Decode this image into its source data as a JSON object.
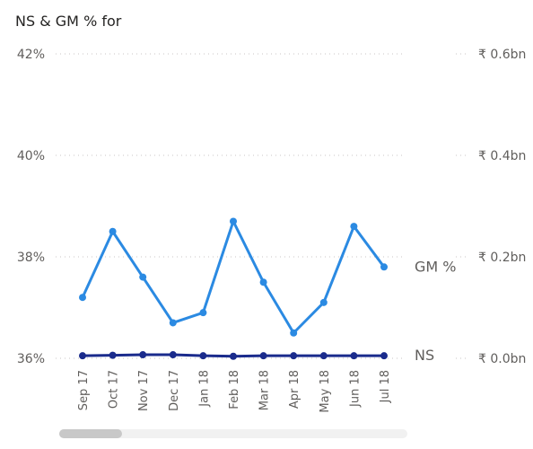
{
  "chart_data": {
    "type": "line",
    "title": "NS & GM % for",
    "categories": [
      "Sep 17",
      "Oct 17",
      "Nov 17",
      "Dec 17",
      "Jan 18",
      "Feb 18",
      "Mar 18",
      "Apr 18",
      "May 18",
      "Jun 18",
      "Jul 18"
    ],
    "left_axis": {
      "ticks": [
        "42%",
        "40%",
        "38%",
        "36%"
      ],
      "min": 36,
      "max": 42,
      "unit": "%"
    },
    "right_axis": {
      "ticks": [
        "₹ 0.6bn",
        "₹ 0.4bn",
        "₹ 0.2bn",
        "₹ 0.0bn"
      ],
      "min": 0,
      "max": 0.6,
      "unit": "bn"
    },
    "grid": true,
    "series": [
      {
        "name": "GM %",
        "axis": "left",
        "color": "#2b8ae2",
        "values": [
          37.2,
          38.5,
          37.6,
          36.7,
          36.9,
          38.7,
          37.5,
          36.5,
          37.1,
          38.6,
          37.8
        ]
      },
      {
        "name": "NS",
        "axis": "right",
        "color": "#1a2b8c",
        "values": [
          0.005,
          0.006,
          0.007,
          0.007,
          0.005,
          0.004,
          0.005,
          0.005,
          0.005,
          0.005,
          0.005
        ]
      }
    ]
  }
}
